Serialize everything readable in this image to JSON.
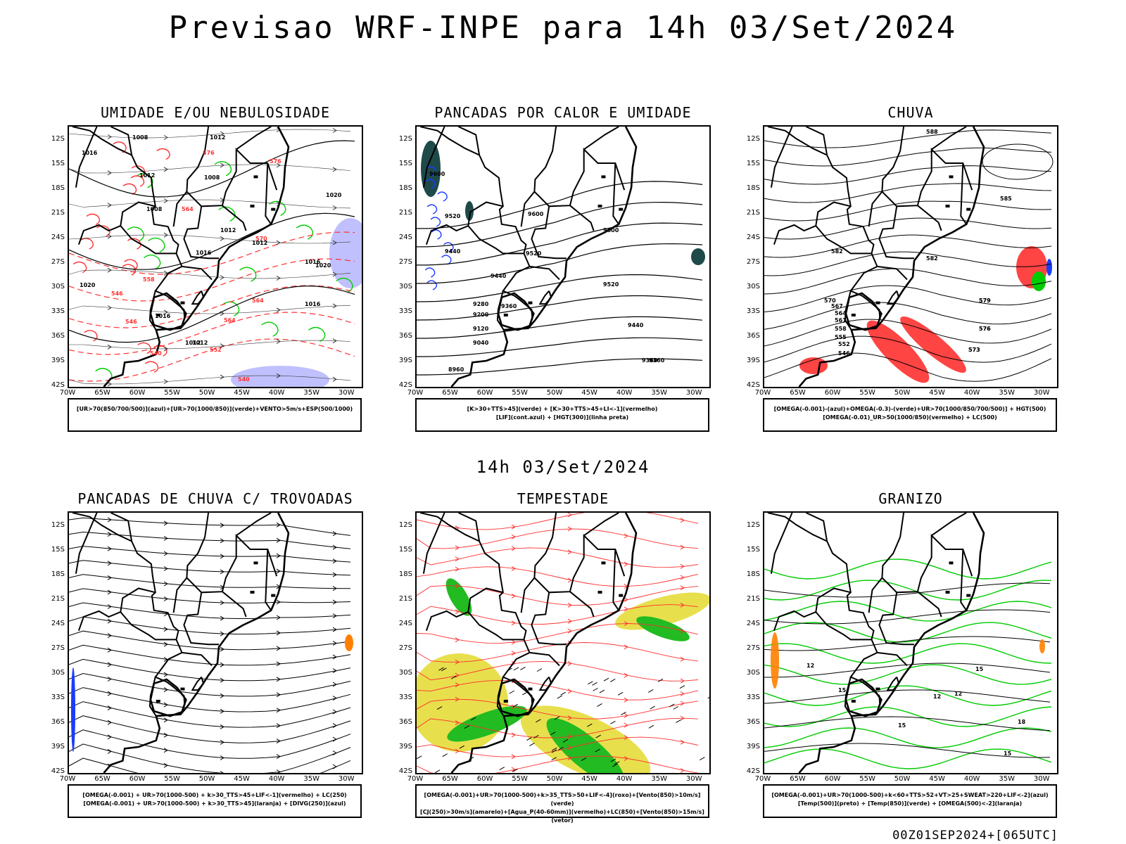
{
  "title": "Previsao WRF-INPE  para 14h 03/Set/2024",
  "subtitle": "14h 03/Set/2024",
  "footer": "00Z01SEP2024+[065UTC]",
  "lat_ticks": [
    "12S",
    "15S",
    "18S",
    "21S",
    "24S",
    "27S",
    "30S",
    "33S",
    "36S",
    "39S",
    "42S"
  ],
  "lon_ticks": [
    "70W",
    "65W",
    "60W",
    "55W",
    "50W",
    "45W",
    "40W",
    "35W",
    "30W"
  ],
  "panels": [
    {
      "title": "UMIDADE E/OU NEBULOSIDADE",
      "legend": [
        "[UR>70(850/700/500)](azul)+[UR>70(1000/850)](verde)+VENTO>5m/s+ESP(500/1000)"
      ]
    },
    {
      "title": "PANCADAS POR CALOR E UMIDADE",
      "legend": [
        "[K>30+TTS>45](verde) + [K>30+TTS>45+LI<-1](vermelho)",
        "[LIF](cont.azul) + [HGT(300)](linha preta)"
      ]
    },
    {
      "title": "CHUVA",
      "legend": [
        "[OMEGA(-0.001)-(azul)+OMEGA(-0.3)-(verde)+UR>70(1000/850/700/500)] + HGT(500)",
        "[OMEGA(-0.01)_UR>50(1000/850)(vermelho) + LC(500)"
      ]
    },
    {
      "title": "PANCADAS DE CHUVA C/ TROVOADAS",
      "legend": [
        "[OMEGA(-0.001) + UR>70(1000-500) + k>30_TTS>45+LIF<-1](vermelho) + LC(250)",
        "[OMEGA(-0.001) + UR>70(1000-500) + k>30_TTS>45](laranja) + [DIVG(250)](azul)"
      ]
    },
    {
      "title": "TEMPESTADE",
      "legend": [
        "[OMEGA(-0.001)+UR>70(1000-500)+k>35_TTS>50+LIF<-4](roxo)+[Vento(850)>10m/s](verde)",
        "[CJ(250)>30m/s](amarelo)+[Agua_P(40-60mm)](vermelho)+LC(850)+[Vento(850)>15m/s](vetor)"
      ]
    },
    {
      "title": "GRANIZO",
      "legend": [
        "[OMEGA(-0.001)+UR>70(1000-500)+k<60+TTS>52+VT>25+SWEAT>220+LIF<-2](azul)",
        "[Temp(500)](preto) + [Temp(850)](verde) + [OMEGA(500)<-2](laranja)"
      ]
    }
  ],
  "contour_labels": {
    "p1": [
      "1008",
      "1012",
      "1016",
      "1012",
      "1008",
      "1008",
      "1012",
      "1016",
      "1020",
      "1016",
      "1012",
      "1020",
      "1016",
      "1020",
      "1012",
      "576",
      "576",
      "564",
      "558",
      "546",
      "546",
      "540",
      "564",
      "570",
      "564",
      "552",
      "540",
      "1016",
      "1012"
    ],
    "p2": [
      "9600",
      "9520",
      "9440",
      "9600",
      "9520",
      "9440",
      "9280",
      "9200",
      "9120",
      "9040",
      "8960",
      "9600",
      "9520",
      "9440",
      "9360",
      "9360",
      "9360"
    ],
    "p3": [
      "588",
      "585",
      "582",
      "579",
      "576",
      "573",
      "570",
      "567",
      "564",
      "561",
      "558",
      "555",
      "552",
      "546",
      "582",
      "579",
      "576",
      "573"
    ],
    "p6": [
      "12",
      "12",
      "15",
      "15",
      "15",
      "12",
      "18",
      "15"
    ]
  },
  "colors": {
    "map_line": "#000000",
    "humidity_mid": "#8080ff",
    "humidity_low": "#00cc00",
    "red": "#ff3030",
    "dark_teal": "#1f4a4a",
    "blue": "#1a3cff",
    "orange": "#ff8000",
    "yellow": "#e6dc3a",
    "green_fill": "#22bb22",
    "light_blue": "#b0b0ff"
  }
}
